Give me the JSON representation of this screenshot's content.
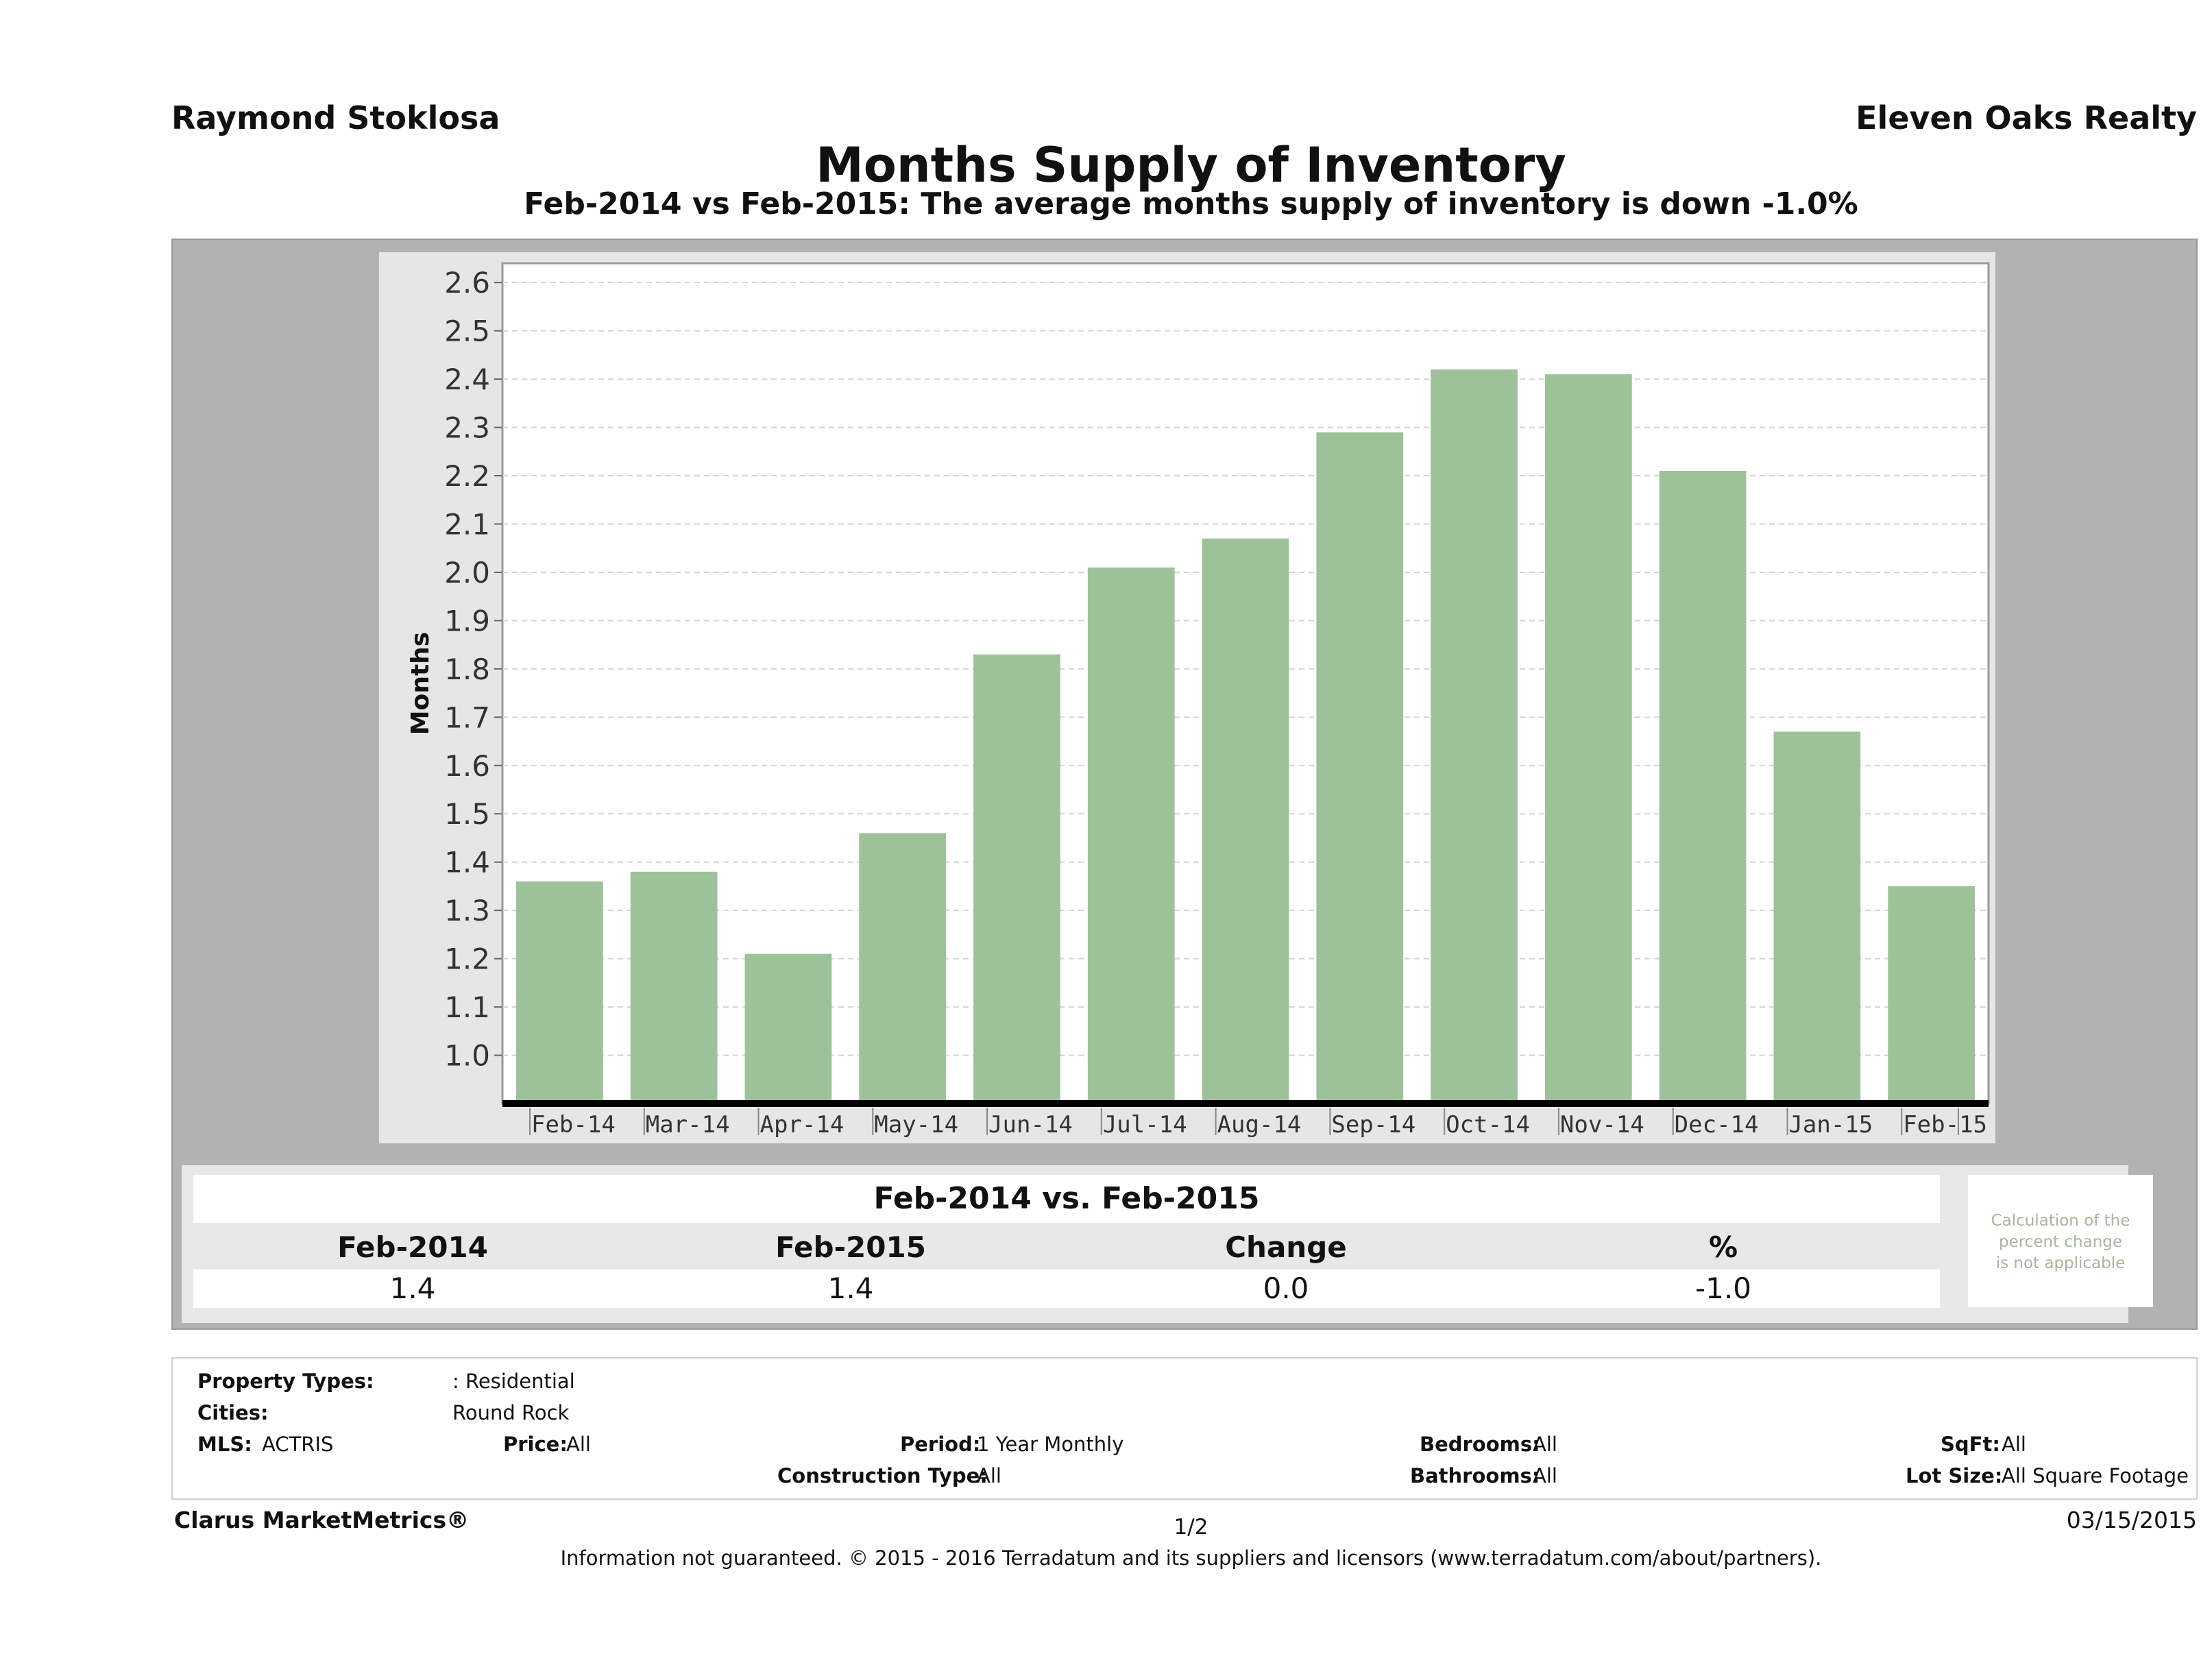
{
  "header": {
    "agent": "Raymond Stoklosa",
    "company": "Eleven Oaks Realty",
    "title": "Months Supply of Inventory",
    "subtitle": "Feb-2014 vs Feb-2015: The average months supply of inventory is down -1.0%"
  },
  "chart_data": {
    "type": "bar",
    "categories": [
      "Feb-14",
      "Mar-14",
      "Apr-14",
      "May-14",
      "Jun-14",
      "Jul-14",
      "Aug-14",
      "Sep-14",
      "Oct-14",
      "Nov-14",
      "Dec-14",
      "Jan-15",
      "Feb-15"
    ],
    "values": [
      1.36,
      1.38,
      1.21,
      1.46,
      1.83,
      2.01,
      2.07,
      2.29,
      2.42,
      2.41,
      2.21,
      1.67,
      1.35
    ],
    "ylabel": "Months",
    "ylim": [
      0.9,
      2.64
    ],
    "yticks": [
      "1.0",
      "1.1",
      "1.2",
      "1.3",
      "1.4",
      "1.5",
      "1.6",
      "1.7",
      "1.8",
      "1.9",
      "2.0",
      "2.1",
      "2.2",
      "2.3",
      "2.4",
      "2.5",
      "2.6"
    ],
    "grid": true,
    "bar_color": "#9dc29a"
  },
  "summary": {
    "title": "Feb-2014 vs. Feb-2015",
    "headers": [
      "Feb-2014",
      "Feb-2015",
      "Change",
      "%"
    ],
    "values": [
      "1.4",
      "1.4",
      "0.0",
      "-1.0"
    ],
    "note": [
      "Calculation of the",
      "percent change",
      "is not applicable"
    ]
  },
  "criteria": {
    "property_types_label": "Property Types:",
    "property_types_value": ": Residential",
    "cities_label": "Cities:",
    "cities_value": "Round Rock",
    "mls_label": "MLS:",
    "mls_value": "ACTRIS",
    "price_label": "Price:",
    "price_value": "All",
    "period_label": "Period:",
    "period_value": "1 Year Monthly",
    "construction_label": "Construction Type:",
    "construction_value": "All",
    "bedrooms_label": "Bedrooms:",
    "bedrooms_value": "All",
    "bathrooms_label": "Bathrooms:",
    "bathrooms_value": "All",
    "sqft_label": "SqFt:",
    "sqft_value": "All",
    "lotsize_label": "Lot Size:",
    "lotsize_value": "All Square Footage"
  },
  "footer": {
    "brand": "Clarus MarketMetrics®",
    "page": "1/2",
    "date": "03/15/2015",
    "info": "Information not guaranteed. © 2015 - 2016 Terradatum and its suppliers and licensors (www.terradatum.com/about/partners)."
  }
}
